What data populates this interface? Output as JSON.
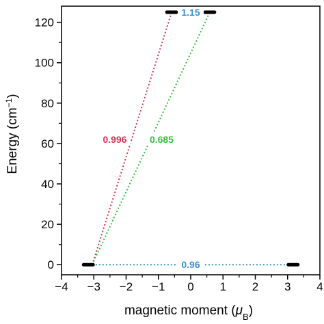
{
  "chart_data": {
    "type": "scatter",
    "xlabel": "magnetic moment (μB)",
    "xlabel_parts": {
      "main": "magnetic moment (",
      "symbol": "μ",
      "sub": "B",
      "close": ")"
    },
    "ylabel": "Energy (cm⁻¹)",
    "ylabel_parts": {
      "main": "Energy (cm",
      "sup": "−1",
      "close": ")"
    },
    "xlim": [
      -4,
      4
    ],
    "ylim": [
      -5,
      128
    ],
    "x_ticks": [
      -4,
      -3,
      -2,
      -1,
      0,
      1,
      2,
      3,
      4
    ],
    "y_ticks": [
      0,
      20,
      40,
      60,
      80,
      100,
      120
    ],
    "grid": false,
    "levels": [
      {
        "x": -3.17,
        "y": 0
      },
      {
        "x": 3.17,
        "y": 0
      },
      {
        "x": -0.59,
        "y": 125
      },
      {
        "x": 0.59,
        "y": 125
      }
    ],
    "transitions": [
      {
        "from": [
          -3.05,
          0
        ],
        "to": [
          -0.59,
          125
        ],
        "label": "0.996",
        "label_x": -2.35,
        "label_y": 62,
        "color": "#d9304f"
      },
      {
        "from": [
          -3.05,
          0
        ],
        "to": [
          0.59,
          125
        ],
        "label": "0.685",
        "label_x": -0.9,
        "label_y": 62,
        "color": "#2fbf3a"
      },
      {
        "from": [
          -0.5,
          125
        ],
        "to": [
          0.5,
          125
        ],
        "label": "1.15",
        "label_x": 0.0,
        "label_y": 125,
        "color": "#3a8fd9"
      },
      {
        "from": [
          -3.05,
          0
        ],
        "to": [
          3.05,
          0
        ],
        "label": "0.96",
        "label_x": 0.0,
        "label_y": 0,
        "color": "#3a8fd9"
      }
    ]
  }
}
